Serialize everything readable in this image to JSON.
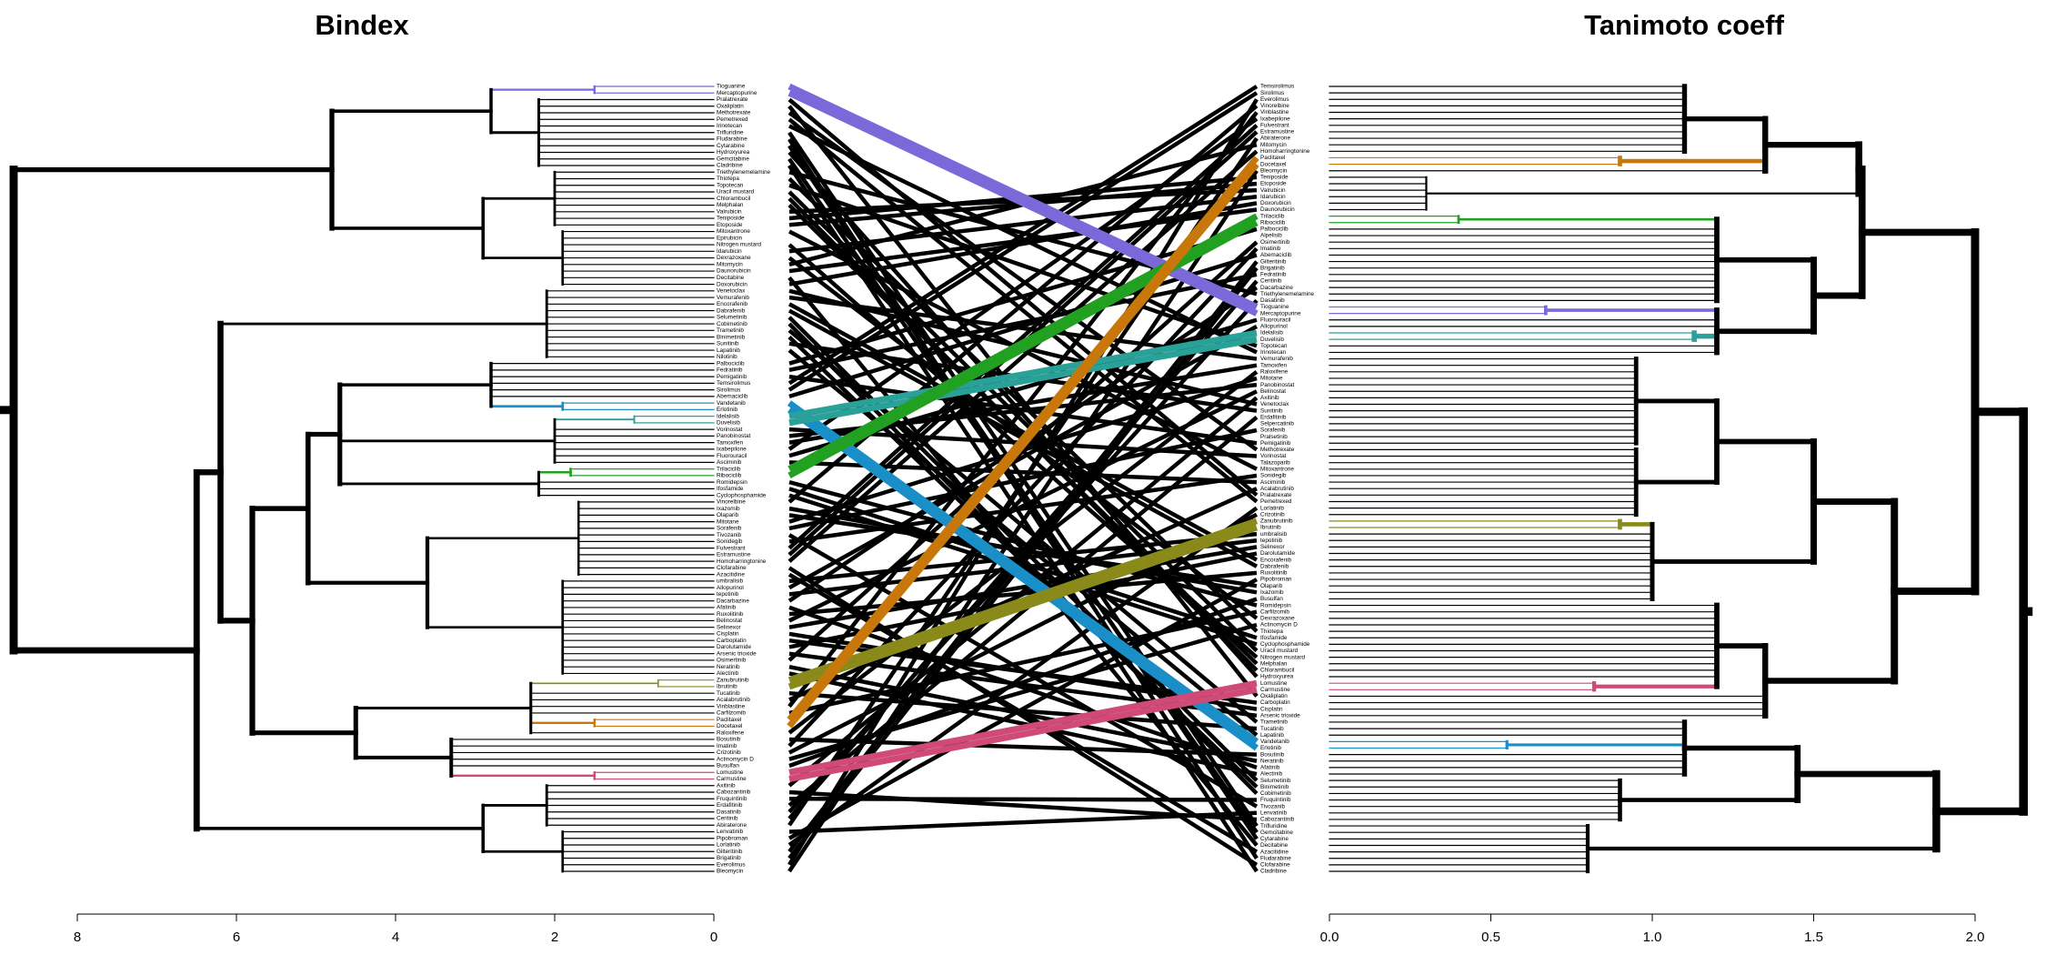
{
  "chart_data": {
    "type": "tanglegram",
    "left": {
      "title": "Bindex",
      "xlim": [
        8,
        0
      ],
      "xticks": [
        8,
        6,
        4,
        2,
        0
      ],
      "leaves": [
        {
          "label": "Tioguanine",
          "color": "#7b68d9"
        },
        {
          "label": "Mercaptopurine",
          "color": "#7b68d9"
        },
        "Pralatrexate",
        "Oxaliplatin",
        "Methotrexate",
        "Pemetrexed",
        "Irinotecan",
        "Trifluridine",
        "Fludarabine",
        "Cytarabine",
        "Hydroxyurea",
        "Gemcitabine",
        "Cladribine",
        "Triethylenemelamine",
        "Thiotepa",
        "Topotecan",
        "Uracil mustard",
        "Chlorambucil",
        "Melphalan",
        "Valrubicin",
        "Teniposide",
        "Etoposide",
        "Mitoxantrone",
        "Epirubicin",
        "Nitrogen mustard",
        "Idarubicin",
        "Dexrazoxane",
        "Mitomycin",
        "Daunorubicin",
        "Decitabine",
        "Doxorubicin",
        "Venetoclax",
        "Vemurafenib",
        "Encorafenib",
        "Dabrafenib",
        "Selumetinib",
        "Cobimetinib",
        "Trametinib",
        "Binimetinib",
        "Sunitinib",
        "Lapatinib",
        "Nilotinib",
        "Palbociclib",
        "Fedratinib",
        "Pemigatinib",
        "Temsirolimus",
        "Sirolimus",
        "Abemaciclib",
        {
          "label": "Vandetanib",
          "color": "#1a8fc7"
        },
        {
          "label": "Erlotinib",
          "color": "#1a8fc7"
        },
        {
          "label": "Idelalisib",
          "color": "#2aa198"
        },
        {
          "label": "Duvelisib",
          "color": "#2aa198"
        },
        "Vorinostat",
        "Panobinostat",
        "Tamoxifen",
        "Ixabepilone",
        "Fluorouracil",
        "Asciminib",
        {
          "label": "Trilaciclib",
          "color": "#22a022"
        },
        {
          "label": "Ribociclib",
          "color": "#22a022"
        },
        "Romidepsin",
        "Ifosfamide",
        "Cyclophosphamide",
        "Vinorelbine",
        "Ixazomib",
        "Olaparib",
        "Mitotane",
        "Sorafenib",
        "Tivozanib",
        "Sonidegib",
        "Fulvestrant",
        "Estramustine",
        "Homoharringtonine",
        "Clofarabine",
        "Azacitidine",
        "umbralisib",
        "Allopurinol",
        "tepotinib",
        "Dacarbazine",
        "Afatinib",
        "Ruxolitinib",
        "Belinostat",
        "Selinexor",
        "Cisplatin",
        "Carboplatin",
        "Darolutamide",
        "Arsenic trioxide",
        "Osimertinib",
        "Neratinib",
        "Alectinib",
        {
          "label": "Zanubrutinib",
          "color": "#8a8a1a"
        },
        {
          "label": "Ibrutinib",
          "color": "#8a8a1a"
        },
        "Tucatinib",
        "Acalabrutinib",
        "Vinblastine",
        "Carfilzomib",
        {
          "label": "Paclitaxel",
          "color": "#c8780a"
        },
        {
          "label": "Docetaxel",
          "color": "#c8780a"
        },
        "Raloxifene",
        "Bosutinib",
        "Imatinib",
        "Crizotinib",
        "Actinomycin D",
        "Busulfan",
        {
          "label": "Lomustine",
          "color": "#d04a78"
        },
        {
          "label": "Carmustine",
          "color": "#d04a78"
        },
        "Axitinib",
        "Cabozantinib",
        "Fruquintinib",
        "Erdafitinib",
        "Dasatinib",
        "Ceritinib",
        "Abiraterone",
        "Lenvatinib",
        "Pipobroman",
        "Lorlatinib",
        "Gilteritinib",
        "Brigatinib",
        "Everolimus",
        "Bleomycin"
      ],
      "clusters": [
        [
          0,
          119,
          8.8
        ],
        [
          0,
          30,
          4.8
        ],
        [
          0,
          12,
          2.8
        ],
        [
          0,
          1,
          1.5
        ],
        [
          2,
          12,
          2.2
        ],
        [
          13,
          30,
          2.9
        ],
        [
          13,
          21,
          2.0
        ],
        [
          22,
          30,
          1.9
        ],
        [
          31,
          119,
          6.5
        ],
        [
          31,
          105,
          6.2
        ],
        [
          31,
          41,
          2.1
        ],
        [
          42,
          105,
          5.8
        ],
        [
          42,
          89,
          5.1
        ],
        [
          42,
          62,
          4.7
        ],
        [
          42,
          49,
          2.8
        ],
        [
          48,
          49,
          1.9
        ],
        [
          50,
          57,
          2.0
        ],
        [
          50,
          51,
          1.0
        ],
        [
          58,
          62,
          2.2
        ],
        [
          58,
          59,
          1.8
        ],
        [
          63,
          89,
          3.6
        ],
        [
          63,
          74,
          1.7
        ],
        [
          75,
          89,
          1.9
        ],
        [
          90,
          105,
          4.5
        ],
        [
          90,
          98,
          2.3
        ],
        [
          90,
          91,
          0.7
        ],
        [
          96,
          97,
          1.5
        ],
        [
          99,
          105,
          3.3
        ],
        [
          104,
          105,
          1.5
        ],
        [
          106,
          119,
          2.9
        ],
        [
          106,
          112,
          2.1
        ],
        [
          113,
          119,
          1.9
        ]
      ]
    },
    "right": {
      "title": "Tanimoto coeff",
      "xlim": [
        0,
        2
      ],
      "xticks": [
        {
          "value": 0,
          "label": "0.0"
        },
        0.5,
        {
          "value": 1,
          "label": "1.0"
        },
        1.5,
        {
          "value": 2,
          "label": "2.0"
        }
      ],
      "leaves": [
        "Temsirolimus",
        "Sirolimus",
        "Everolimus",
        "Vinorelbine",
        "Vinblastine",
        "Ixabepilone",
        "Fulvestrant",
        "Estramustine",
        "Abiraterone",
        "Mitomycin",
        "Homoharringtonine",
        {
          "label": "Paclitaxel",
          "color": "#c8780a"
        },
        {
          "label": "Docetaxel",
          "color": "#c8780a"
        },
        "Bleomycin",
        "Teniposide",
        "Etoposide",
        "Valrubicin",
        "Idarubicin",
        "Doxorubicin",
        "Daunorubicin",
        {
          "label": "Trilaciclib",
          "color": "#22a022"
        },
        {
          "label": "Ribociclib",
          "color": "#22a022"
        },
        "Palbociclib",
        "Alpelisib",
        "Osimertinib",
        "Imatinib",
        "Abemaciclib",
        "Gilteritinib",
        "Brigatinib",
        "Fedratinib",
        "Ceritinib",
        "Dacarbazine",
        "Triethylenemelamine",
        "Dasatinib",
        {
          "label": "Tioguanine",
          "color": "#7b68d9"
        },
        {
          "label": "Mercaptopurine",
          "color": "#7b68d9"
        },
        "Fluorouracil",
        "Allopurinol",
        {
          "label": "Idelalisib",
          "color": "#2aa198"
        },
        {
          "label": "Duvelisib",
          "color": "#2aa198"
        },
        "Topotecan",
        "Irinotecan",
        "Vemurafenib",
        "Tamoxifen",
        "Raloxifene",
        "Mitotane",
        "Panobinostat",
        "Belinostat",
        "Axitinib",
        "Venetoclax",
        "Sunitinib",
        "Erdafitinib",
        "Selpercatinib",
        "Sorafenib",
        "Pralsetinib",
        "Pemigatinib",
        "Methotrexate",
        "Vorinostat",
        "Talazoparib",
        "Mitoxantrone",
        "Sonidegib",
        "Asciminib",
        "Acalabrutinib",
        "Pralatrexate",
        "Pemetrexed",
        "Lorlatinib",
        "Crizotinib",
        {
          "label": "Zanubrutinib",
          "color": "#8a8a1a"
        },
        {
          "label": "Ibrutinib",
          "color": "#8a8a1a"
        },
        "umbralisib",
        "tepotinib",
        "Selinexor",
        "Darolutamide",
        "Encorafenib",
        "Dabrafenib",
        "Ruxolitinib",
        "Pipobroman",
        "Olaparib",
        "Ixazomib",
        "Busulfan",
        "Romidepsin",
        "Carfilzomib",
        "Dexrazoxane",
        "Actinomycin D",
        "Thiotepa",
        "Ifosfamide",
        "Cyclophosphamide",
        "Uracil mustard",
        "Nitrogen mustard",
        "Melphalan",
        "Chlorambucil",
        "Hydroxyurea",
        {
          "label": "Lomustine",
          "color": "#d04a78"
        },
        {
          "label": "Carmustine",
          "color": "#d04a78"
        },
        "Oxaliplatin",
        "Carboplatin",
        "Cisplatin",
        "Arsenic trioxide",
        "Trametinib",
        "Tucatinib",
        "Lapatinib",
        {
          "label": "Vandetanib",
          "color": "#1a8fc7"
        },
        {
          "label": "Erlotinib",
          "color": "#1a8fc7"
        },
        "Bosutinib",
        "Neratinib",
        "Afatinib",
        "Alectinib",
        "Selumetinib",
        "Binimetinib",
        "Cobimetinib",
        "Fruquintinib",
        "Tivozanib",
        "Lenvatinib",
        "Cabozantinib",
        "Trifluridine",
        "Gemcitabine",
        "Cytarabine",
        "Decitabine",
        "Azacitidine",
        "Fludarabine",
        "Clofarabine",
        "Cladribine"
      ],
      "clusters": [
        [
          0,
          121,
          2.15
        ],
        [
          0,
          97,
          2.0
        ],
        [
          0,
          41,
          1.65
        ],
        [
          0,
          19,
          1.64
        ],
        [
          0,
          13,
          1.35
        ],
        [
          0,
          10,
          1.1
        ],
        [
          11,
          12,
          0.9
        ],
        [
          14,
          19,
          0.3
        ],
        [
          20,
          41,
          1.5
        ],
        [
          20,
          33,
          1.2
        ],
        [
          20,
          21,
          0.4
        ],
        [
          34,
          41,
          1.2
        ],
        [
          34,
          35,
          0.67
        ],
        [
          38,
          39,
          1.13
        ],
        [
          42,
          97,
          1.75
        ],
        [
          42,
          79,
          1.5
        ],
        [
          42,
          66,
          1.2
        ],
        [
          42,
          55,
          0.95
        ],
        [
          56,
          66,
          0.95
        ],
        [
          67,
          79,
          1.0
        ],
        [
          67,
          68,
          0.9
        ],
        [
          80,
          97,
          1.35
        ],
        [
          80,
          93,
          1.2
        ],
        [
          92,
          93,
          0.82
        ],
        [
          98,
          121,
          1.88
        ],
        [
          98,
          113,
          1.45
        ],
        [
          98,
          106,
          1.1
        ],
        [
          101,
          102,
          0.55
        ],
        [
          107,
          113,
          0.9
        ],
        [
          114,
          121,
          0.8
        ]
      ]
    }
  }
}
